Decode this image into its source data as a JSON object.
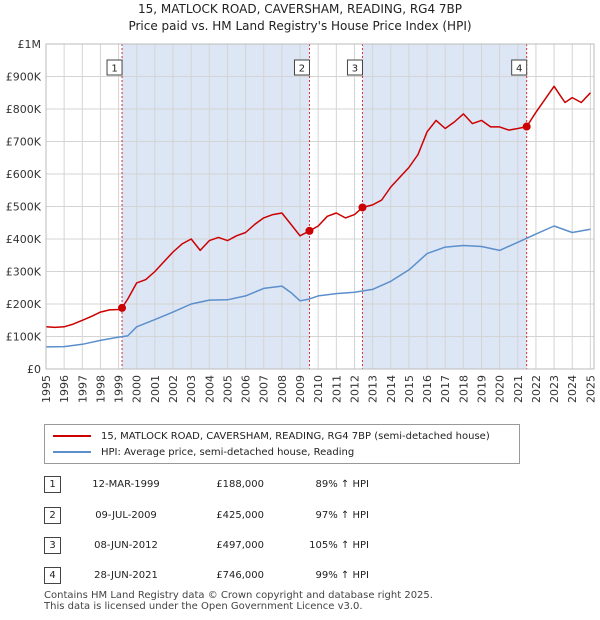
{
  "title": "15, MATLOCK ROAD, CAVERSHAM, READING, RG4 7BP",
  "subtitle": "Price paid vs. HM Land Registry's House Price Index (HPI)",
  "colors": {
    "property": "#cc0000",
    "hpi": "#5b8fcc",
    "shade": "#dde6f5",
    "marker_line": "#cc0000"
  },
  "legend": {
    "property": "15, MATLOCK ROAD, CAVERSHAM, READING, RG4 7BP (semi-detached house)",
    "hpi": "HPI: Average price, semi-detached house, Reading"
  },
  "sales": [
    {
      "num": "1",
      "date": "12-MAR-1999",
      "price": "£188,000",
      "hpi": "89% ↑ HPI"
    },
    {
      "num": "2",
      "date": "09-JUL-2009",
      "price": "£425,000",
      "hpi": "97% ↑ HPI"
    },
    {
      "num": "3",
      "date": "08-JUN-2012",
      "price": "£497,000",
      "hpi": "105% ↑ HPI"
    },
    {
      "num": "4",
      "date": "28-JUN-2021",
      "price": "£746,000",
      "hpi": "99% ↑ HPI"
    }
  ],
  "footer": {
    "line1": "Contains HM Land Registry data © Crown copyright and database right 2025.",
    "line2": "This data is licensed under the Open Government Licence v3.0."
  },
  "chart_data": {
    "type": "line",
    "title": "15, MATLOCK ROAD, CAVERSHAM, READING, RG4 7BP",
    "subtitle": "Price paid vs. HM Land Registry's House Price Index (HPI)",
    "xlabel": "",
    "ylabel": "",
    "xlim": [
      1995,
      2025.2
    ],
    "ylim": [
      0,
      1000000
    ],
    "x_ticks": [
      1995,
      1996,
      1997,
      1998,
      1999,
      2000,
      2001,
      2002,
      2003,
      2004,
      2005,
      2006,
      2007,
      2008,
      2009,
      2010,
      2011,
      2012,
      2013,
      2014,
      2015,
      2016,
      2017,
      2018,
      2019,
      2020,
      2021,
      2022,
      2023,
      2024,
      2025
    ],
    "y_ticks": [
      {
        "value": 0,
        "label": "£0"
      },
      {
        "value": 100000,
        "label": "£100K"
      },
      {
        "value": 200000,
        "label": "£200K"
      },
      {
        "value": 300000,
        "label": "£300K"
      },
      {
        "value": 400000,
        "label": "£400K"
      },
      {
        "value": 500000,
        "label": "£500K"
      },
      {
        "value": 600000,
        "label": "£600K"
      },
      {
        "value": 700000,
        "label": "£700K"
      },
      {
        "value": 800000,
        "label": "£800K"
      },
      {
        "value": 900000,
        "label": "£900K"
      },
      {
        "value": 1000000,
        "label": "£1M"
      }
    ],
    "grid": true,
    "legend_position": "below",
    "shaded_ranges": [
      [
        1999.19,
        2009.52
      ],
      [
        2012.44,
        2021.49
      ]
    ],
    "sale_markers": [
      {
        "label": "1",
        "x": 1999.19,
        "y": 188000
      },
      {
        "label": "2",
        "x": 2009.52,
        "y": 425000
      },
      {
        "label": "3",
        "x": 2012.44,
        "y": 497000
      },
      {
        "label": "4",
        "x": 2021.49,
        "y": 746000
      }
    ],
    "series": [
      {
        "name": "15, MATLOCK ROAD, CAVERSHAM, READING, RG4 7BP (semi-detached house)",
        "color": "#cc0000",
        "x": [
          1995,
          1995.5,
          1996,
          1996.5,
          1997,
          1997.5,
          1998,
          1998.5,
          1999,
          1999.19,
          1999.5,
          2000,
          2000.5,
          2001,
          2001.5,
          2002,
          2002.5,
          2003,
          2003.5,
          2004,
          2004.5,
          2005,
          2005.5,
          2006,
          2006.5,
          2007,
          2007.5,
          2008,
          2008.5,
          2009,
          2009.52,
          2010,
          2010.5,
          2011,
          2011.5,
          2012,
          2012.44,
          2013,
          2013.5,
          2014,
          2014.5,
          2015,
          2015.5,
          2016,
          2016.5,
          2017,
          2017.5,
          2018,
          2018.5,
          2019,
          2019.5,
          2020,
          2020.5,
          2021,
          2021.49,
          2022,
          2022.5,
          2023,
          2023.3,
          2023.6,
          2024,
          2024.5,
          2025
        ],
        "y": [
          130000,
          128000,
          130000,
          138000,
          150000,
          162000,
          175000,
          182000,
          183000,
          188000,
          215000,
          265000,
          275000,
          300000,
          330000,
          360000,
          385000,
          400000,
          365000,
          395000,
          405000,
          395000,
          410000,
          420000,
          445000,
          465000,
          475000,
          480000,
          445000,
          410000,
          425000,
          440000,
          470000,
          480000,
          465000,
          475000,
          497000,
          505000,
          520000,
          560000,
          590000,
          620000,
          660000,
          730000,
          765000,
          740000,
          760000,
          785000,
          755000,
          765000,
          745000,
          745000,
          735000,
          740000,
          746000,
          790000,
          830000,
          870000,
          845000,
          820000,
          835000,
          820000,
          850000
        ]
      },
      {
        "name": "HPI: Average price, semi-detached house, Reading",
        "color": "#5b8fcc",
        "x": [
          1995,
          1996,
          1997,
          1998,
          1999,
          1999.5,
          2000,
          2001,
          2002,
          2003,
          2004,
          2005,
          2006,
          2007,
          2008,
          2008.5,
          2009,
          2009.5,
          2010,
          2011,
          2012,
          2013,
          2014,
          2015,
          2016,
          2017,
          2018,
          2019,
          2020,
          2021,
          2022,
          2023,
          2024,
          2025
        ],
        "y": [
          68000,
          69000,
          76000,
          88000,
          98000,
          102000,
          130000,
          152000,
          175000,
          200000,
          212000,
          213000,
          225000,
          248000,
          255000,
          235000,
          210000,
          215000,
          225000,
          232000,
          236000,
          245000,
          270000,
          305000,
          355000,
          375000,
          380000,
          377000,
          365000,
          390000,
          415000,
          440000,
          420000,
          430000
        ]
      }
    ]
  }
}
